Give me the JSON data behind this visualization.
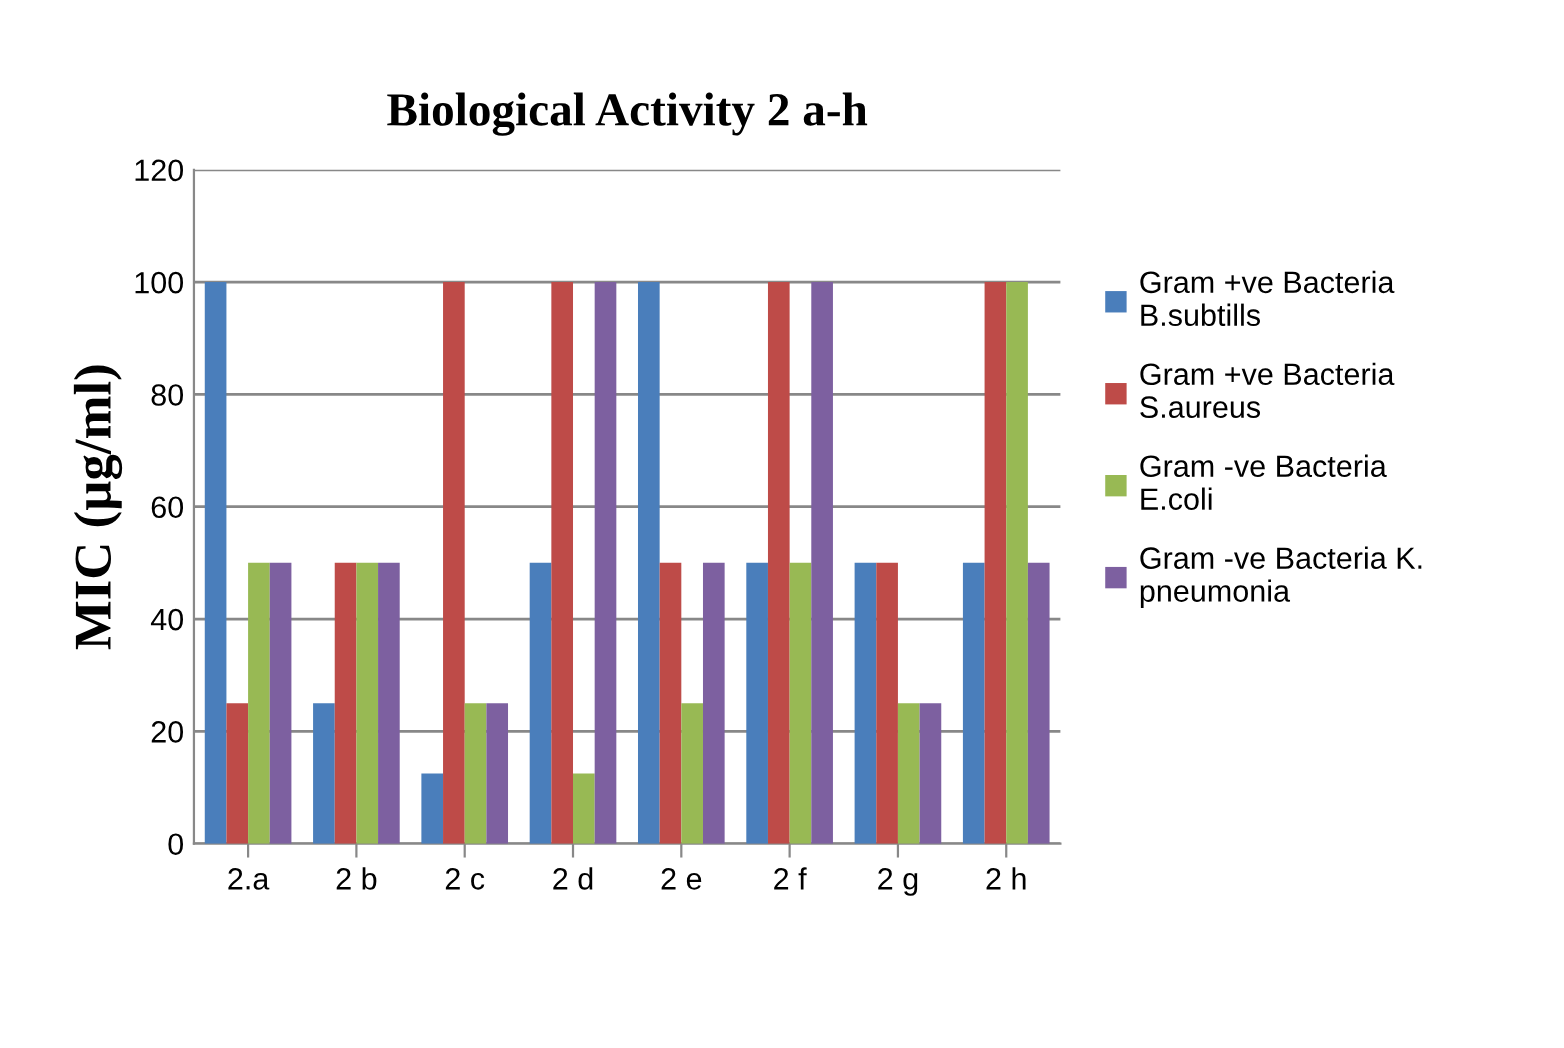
{
  "chart_data": {
    "type": "bar",
    "title": "Biological Activity 2 a-h",
    "ylabel": "MIC (µg/ml)",
    "categories": [
      "2.a",
      "2 b",
      "2 c",
      "2 d",
      "2 e",
      "2 f",
      "2 g",
      "2 h"
    ],
    "series": [
      {
        "name": "Gram +ve Bacteria\nB.subtills",
        "color": "#4a7ebb",
        "values": [
          100,
          25,
          12.5,
          50,
          100,
          50,
          50,
          50
        ]
      },
      {
        "name": "Gram +ve Bacteria\nS.aureus",
        "color": "#be4b48",
        "values": [
          25,
          50,
          100,
          100,
          50,
          100,
          50,
          100
        ]
      },
      {
        "name": "Gram -ve Bacteria\nE.coli",
        "color": "#98b954",
        "values": [
          50,
          50,
          25,
          12.5,
          25,
          50,
          25,
          100
        ]
      },
      {
        "name": "Gram -ve Bacteria K.\npneumonia",
        "color": "#7d60a0",
        "values": [
          50,
          50,
          25,
          100,
          50,
          100,
          25,
          50
        ]
      }
    ],
    "ylim": [
      0,
      120
    ],
    "yticks": [
      0,
      20,
      40,
      60,
      80,
      100,
      120
    ],
    "grid": "y",
    "legend": "right"
  }
}
